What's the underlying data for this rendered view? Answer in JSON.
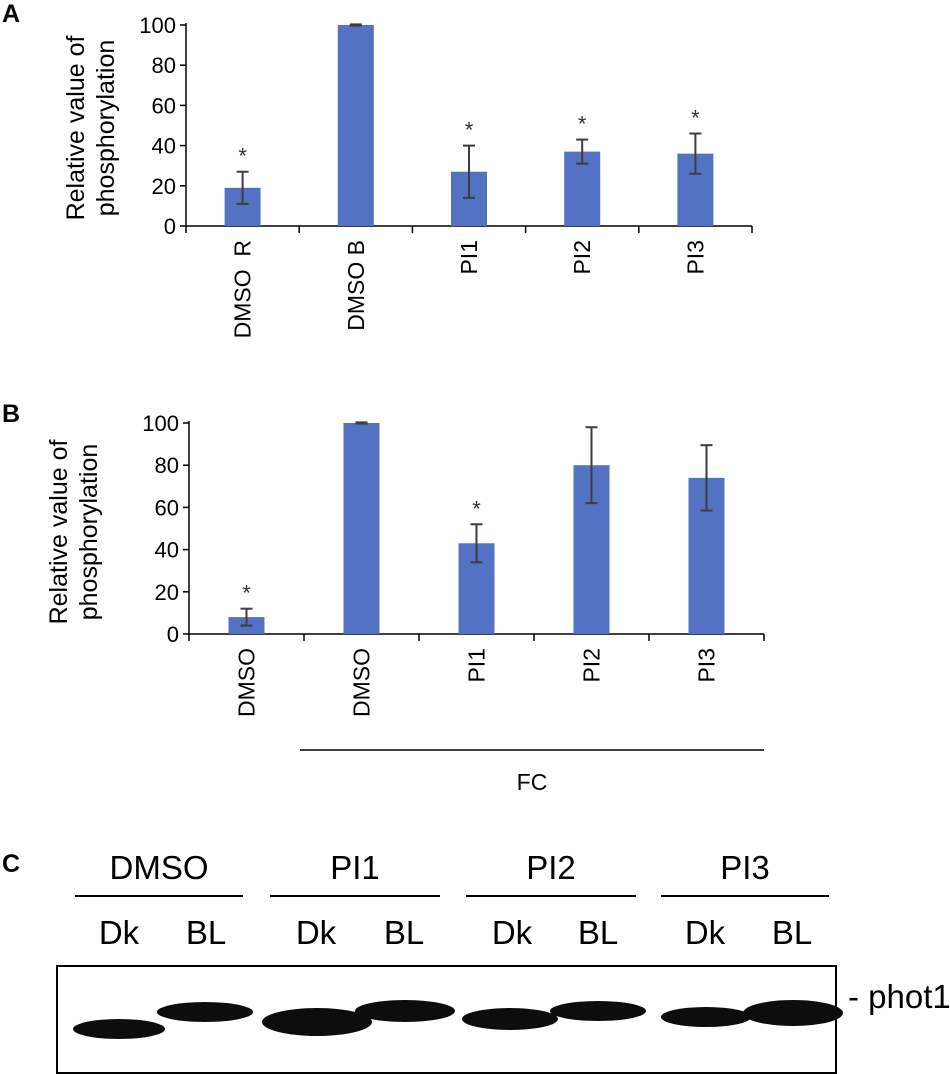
{
  "chart_data": [
    {
      "panel": "A",
      "type": "bar",
      "ylabel_line1": "Relative value of",
      "ylabel_line2": "phosphorylation",
      "categories": [
        "DMSO  R",
        "DMSO B",
        "PI1",
        "PI2",
        "PI3"
      ],
      "values": [
        19,
        100,
        27,
        37,
        36
      ],
      "errors": [
        8,
        0.3,
        13,
        6,
        10
      ],
      "significance": [
        "*",
        "",
        "*",
        "*",
        "*"
      ],
      "yticks": [
        0,
        20,
        40,
        60,
        80,
        100
      ],
      "ylim": [
        0,
        100
      ],
      "bar_color": "#5472c4"
    },
    {
      "panel": "B",
      "type": "bar",
      "ylabel_line1": "Relative value of",
      "ylabel_line2": "phosphorylation",
      "categories": [
        "DMSO",
        "DMSO",
        "PI1",
        "PI2",
        "PI3"
      ],
      "values": [
        8,
        100,
        43,
        80,
        74
      ],
      "errors": [
        4,
        0.3,
        9,
        18,
        15.5
      ],
      "significance": [
        "*",
        "",
        "*",
        "",
        ""
      ],
      "yticks": [
        0,
        20,
        40,
        60,
        80,
        100
      ],
      "ylim": [
        0,
        100
      ],
      "group_label": "FC",
      "bar_color": "#5472c4"
    }
  ],
  "blot": {
    "panel": "C",
    "groups": [
      "DMSO",
      "PI1",
      "PI2",
      "PI3"
    ],
    "lane_labels": [
      "Dk",
      "BL",
      "Dk",
      "BL",
      "Dk",
      "BL",
      "Dk",
      "BL"
    ],
    "band_label": "- phot1"
  }
}
